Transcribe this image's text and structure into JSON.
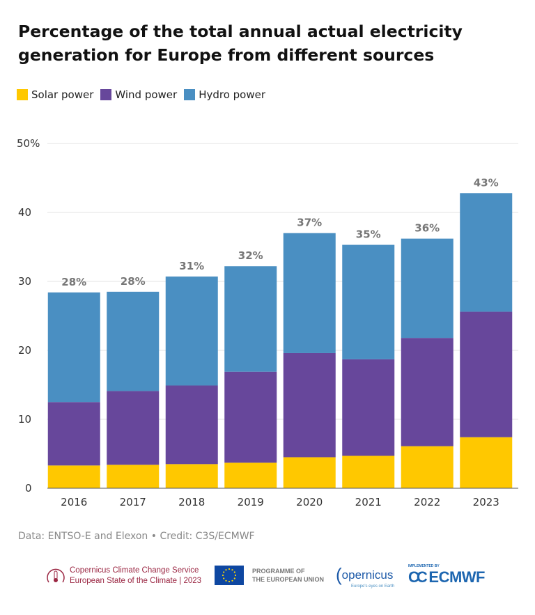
{
  "chart_data": {
    "type": "bar",
    "stacked": true,
    "title": "Percentage of the total annual actual electricity generation for Europe from different sources",
    "categories": [
      "2016",
      "2017",
      "2018",
      "2019",
      "2020",
      "2021",
      "2022",
      "2023"
    ],
    "series": [
      {
        "name": "Solar power",
        "color": "#ffc800",
        "values": [
          3.3,
          3.4,
          3.5,
          3.7,
          4.5,
          4.7,
          6.1,
          7.4
        ]
      },
      {
        "name": "Wind power",
        "color": "#67479b",
        "values": [
          9.2,
          10.7,
          11.4,
          13.2,
          15.1,
          14.0,
          15.7,
          18.2
        ]
      },
      {
        "name": "Hydro power",
        "color": "#4a8fc2",
        "values": [
          15.9,
          14.4,
          15.8,
          15.3,
          17.4,
          16.6,
          14.4,
          17.2
        ]
      }
    ],
    "total_labels": [
      "28%",
      "28%",
      "31%",
      "32%",
      "37%",
      "35%",
      "36%",
      "43%"
    ],
    "yticks": [
      "0",
      "10",
      "20",
      "30",
      "40",
      "50%"
    ],
    "ylim": [
      0,
      50
    ],
    "xlabel": "",
    "ylabel": "",
    "grid": true,
    "legend_position": "top-left"
  },
  "source": "Data: ENTSO-E and Elexon • Credit: C3S/ECMWF",
  "footer": {
    "c3s_line1": "Copernicus Climate Change Service",
    "c3s_line2": "European State of the Climate | 2023",
    "eu_line1": "PROGRAMME OF",
    "eu_line2": "THE EUROPEAN UNION",
    "copernicus": "opernicus",
    "copernicus_tagline": "Europe's eyes on Earth",
    "ecmwf_implemented": "IMPLEMENTED BY",
    "ecmwf": "ECMWF"
  }
}
